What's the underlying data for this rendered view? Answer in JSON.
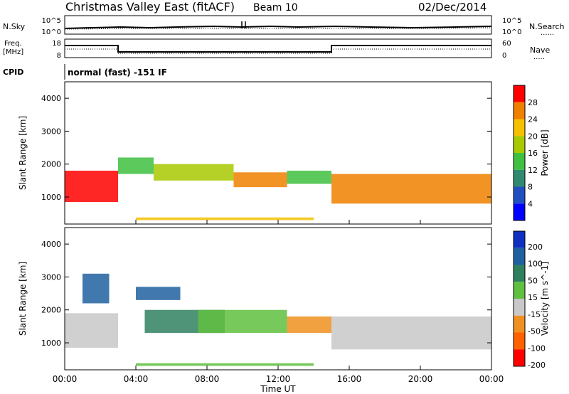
{
  "header": {
    "title": "Christmas Valley East (fitACF)",
    "beam": "Beam 10",
    "date": "02/Dec/2014"
  },
  "top_panels": {
    "noise_left_label": "N.Sky",
    "noise_right_label": "N.Search",
    "noise_ticks": [
      "10^5",
      "10^0"
    ],
    "freq_label_line1": "Freq.",
    "freq_label_line2": "[MHz]",
    "freq_ticks": [
      "18",
      "8"
    ],
    "nave_label": "Nave",
    "nave_ticks": [
      "60",
      "0"
    ],
    "cpid_label": "CPID",
    "cpid_text": "normal (fast) -151 IF"
  },
  "axes": {
    "ylabel": "Slant Range [km]",
    "xlabel": "Time UT",
    "x_ticks": [
      "00:00",
      "04:00",
      "08:00",
      "12:00",
      "16:00",
      "20:00",
      "00:00"
    ],
    "y_ticks": [
      "1000",
      "2000",
      "3000",
      "4000"
    ]
  },
  "chart_data": [
    {
      "type": "heatmap",
      "title": "",
      "xlabel": "",
      "ylabel": "Slant Range [km]",
      "xlim": [
        0,
        24
      ],
      "ylim": [
        180,
        4500
      ],
      "colorbar_label": "Power [dB]",
      "colorbar_ticks": [
        "4",
        "8",
        "12",
        "16",
        "20",
        "24",
        "28"
      ],
      "colorbar_colors": [
        "#0000ff",
        "#2050c0",
        "#308a70",
        "#40c040",
        "#a8c800",
        "#f5c000",
        "#f08000",
        "#ff0000"
      ],
      "bands": [
        {
          "t_start": 0.0,
          "t_end": 3.0,
          "r_start": 850,
          "r_end": 1800,
          "value": 28
        },
        {
          "t_start": 3.0,
          "t_end": 5.0,
          "r_start": 1700,
          "r_end": 2200,
          "value": 14
        },
        {
          "t_start": 5.0,
          "t_end": 9.5,
          "r_start": 1500,
          "r_end": 2000,
          "value": 18
        },
        {
          "t_start": 9.5,
          "t_end": 12.5,
          "r_start": 1300,
          "r_end": 1750,
          "value": 26
        },
        {
          "t_start": 12.5,
          "t_end": 15.0,
          "r_start": 1400,
          "r_end": 1800,
          "value": 14
        },
        {
          "t_start": 15.0,
          "t_end": 24.0,
          "r_start": 800,
          "r_end": 1700,
          "value": 26
        },
        {
          "t_start": 4.0,
          "t_end": 14.0,
          "r_start": 300,
          "r_end": 380,
          "value": 22
        }
      ]
    },
    {
      "type": "heatmap",
      "title": "",
      "xlabel": "Time UT",
      "ylabel": "Slant Range [km]",
      "xlim": [
        0,
        24
      ],
      "ylim": [
        180,
        4500
      ],
      "colorbar_label": "Velocity [m s^-1]",
      "colorbar_ticks": [
        "200",
        "100",
        "50",
        "15",
        "-15",
        "-50",
        "-100",
        "-200"
      ],
      "colorbar_colors": [
        "#1030c0",
        "#2060a0",
        "#308060",
        "#60c040",
        "#c8c8c8",
        "#f09020",
        "#ff6000",
        "#ff0000"
      ],
      "bands": [
        {
          "t_start": 0.0,
          "t_end": 3.0,
          "r_start": 850,
          "r_end": 1900,
          "value": -5
        },
        {
          "t_start": 1.0,
          "t_end": 2.5,
          "r_start": 2200,
          "r_end": 3100,
          "value": 120
        },
        {
          "t_start": 4.0,
          "t_end": 6.5,
          "r_start": 2300,
          "r_end": 2700,
          "value": 180
        },
        {
          "t_start": 4.5,
          "t_end": 9.0,
          "r_start": 1300,
          "r_end": 2000,
          "value": 90
        },
        {
          "t_start": 7.5,
          "t_end": 12.5,
          "r_start": 1300,
          "r_end": 2000,
          "value": 40
        },
        {
          "t_start": 12.5,
          "t_end": 15.0,
          "r_start": 1300,
          "r_end": 1800,
          "value": -40
        },
        {
          "t_start": 15.0,
          "t_end": 24.0,
          "r_start": 800,
          "r_end": 1800,
          "value": 0
        },
        {
          "t_start": 4.0,
          "t_end": 14.0,
          "r_start": 300,
          "r_end": 380,
          "value": 30
        }
      ]
    }
  ]
}
